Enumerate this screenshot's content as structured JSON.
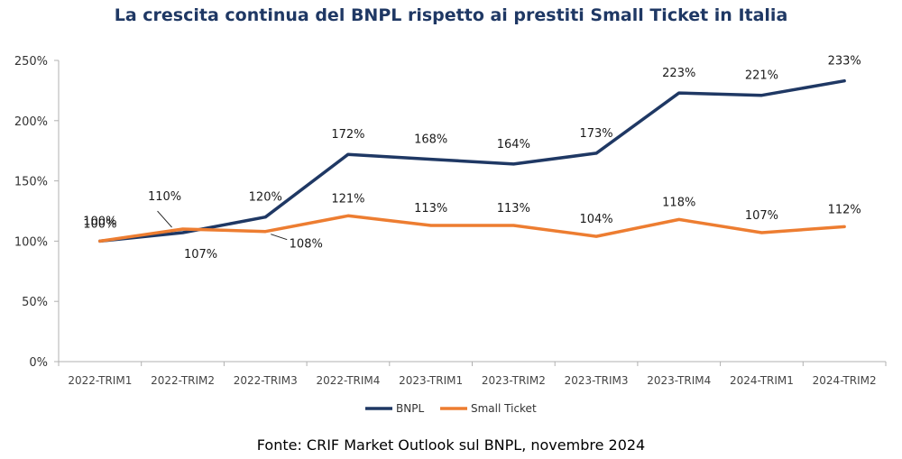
{
  "title": "La crescita continua del BNPL rispetto ai prestiti Small Ticket in Italia",
  "source": "Fonte: CRIF Market Outlook sul BNPL, novembre 2024",
  "colors": {
    "title": "#1f3864",
    "bnpl": "#1f3864",
    "small_ticket": "#ed7d31",
    "axis": "#b0b0b0"
  },
  "chart_data": {
    "type": "line",
    "title": "La crescita continua del BNPL rispetto ai prestiti Small Ticket in Italia",
    "xlabel": "",
    "ylabel": "",
    "categories": [
      "2022-TRIM1",
      "2022-TRIM2",
      "2022-TRIM3",
      "2022-TRIM4",
      "2023-TRIM1",
      "2023-TRIM2",
      "2023-TRIM3",
      "2023-TRIM4",
      "2024-TRIM1",
      "2024-TRIM2"
    ],
    "ylim": [
      0,
      250
    ],
    "yticks": [
      0,
      50,
      100,
      150,
      200,
      250
    ],
    "ytick_labels": [
      "0%",
      "50%",
      "100%",
      "150%",
      "200%",
      "250%"
    ],
    "grid": false,
    "legend_position": "bottom",
    "series": [
      {
        "name": "BNPL",
        "color": "#1f3864",
        "values": [
          100,
          107,
          120,
          172,
          168,
          164,
          173,
          223,
          221,
          233
        ],
        "labels": [
          "100%",
          "107%",
          "120%",
          "172%",
          "168%",
          "164%",
          "173%",
          "223%",
          "221%",
          "233%"
        ]
      },
      {
        "name": "Small Ticket",
        "color": "#ed7d31",
        "values": [
          100,
          110,
          108,
          121,
          113,
          113,
          104,
          118,
          107,
          112
        ],
        "labels": [
          "100%",
          "110%",
          "108%",
          "121%",
          "113%",
          "113%",
          "104%",
          "118%",
          "107%",
          "112%"
        ]
      }
    ]
  }
}
